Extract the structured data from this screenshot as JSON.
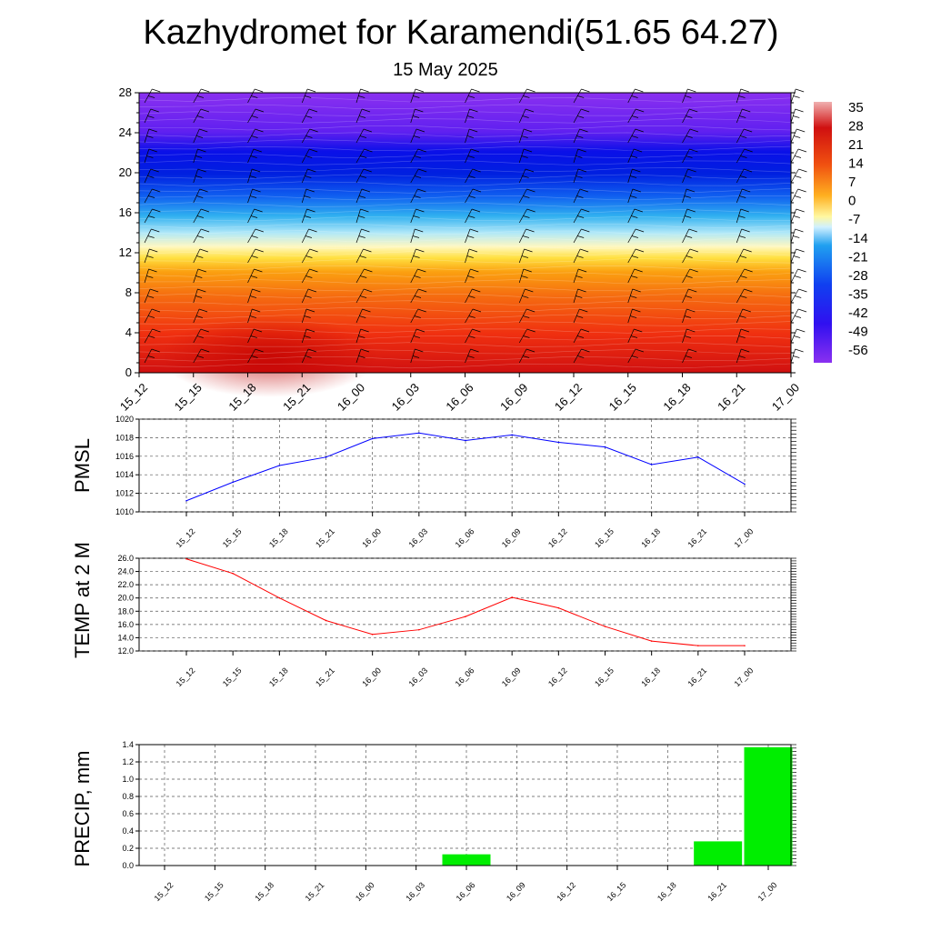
{
  "header": {
    "title": "Kazhydromet for Karamendi(51.65 64.27)",
    "subtitle": "15 May 2025"
  },
  "colors": {
    "pmsl_line": "#0000ff",
    "temp_line": "#ff0000",
    "precip_bar": "#00ee00",
    "grid": "#555555"
  },
  "chart_data": [
    {
      "type": "heatmap",
      "name": "temperature-wind cross-section",
      "x": [
        "15_12",
        "15_15",
        "15_18",
        "15_21",
        "16_00",
        "16_03",
        "16_06",
        "16_09",
        "16_12",
        "16_15",
        "16_18",
        "16_21",
        "17_00"
      ],
      "y_ticks": [
        0,
        4,
        8,
        12,
        16,
        20,
        24,
        28
      ],
      "ylim": [
        0,
        28
      ],
      "colorbar": {
        "labels": [
          "35",
          "28",
          "21",
          "14",
          "7",
          "0",
          "-7",
          "-14",
          "-21",
          "-28",
          "-35",
          "-42",
          "-49",
          "-56"
        ],
        "range": [
          -60,
          38
        ]
      },
      "temperature_profile_by_level": [
        {
          "level": 0,
          "value": 22
        },
        {
          "level": 4,
          "value": 18
        },
        {
          "level": 8,
          "value": 12
        },
        {
          "level": 11,
          "value": 2
        },
        {
          "level": 13,
          "value": -14
        },
        {
          "level": 16,
          "value": -28
        },
        {
          "level": 19,
          "value": -55
        },
        {
          "level": 22,
          "value": -58
        },
        {
          "level": 24,
          "value": -52
        },
        {
          "level": 28,
          "value": -48
        }
      ],
      "wind_barbs": "present"
    },
    {
      "type": "line",
      "ylabel": "PMSL",
      "x": [
        "15_12",
        "15_15",
        "15_18",
        "15_21",
        "16_00",
        "16_03",
        "16_06",
        "16_09",
        "16_12",
        "16_15",
        "16_18",
        "16_21",
        "17_00"
      ],
      "values": [
        1011.2,
        1013.2,
        1015.0,
        1015.9,
        1017.9,
        1018.5,
        1017.7,
        1018.3,
        1017.5,
        1017.0,
        1015.1,
        1015.9,
        1013.0
      ],
      "ylim": [
        1010,
        1020
      ],
      "y_ticks": [
        "1010",
        "1012",
        "1014",
        "1016",
        "1018",
        "1020"
      ],
      "grid": true
    },
    {
      "type": "line",
      "ylabel": "TEMP at 2 M",
      "x": [
        "15_12",
        "15_15",
        "15_18",
        "15_21",
        "16_00",
        "16_03",
        "16_06",
        "16_09",
        "16_12",
        "16_15",
        "16_18",
        "16_21",
        "17_00"
      ],
      "values": [
        25.9,
        23.7,
        20.0,
        16.6,
        14.5,
        15.2,
        17.2,
        20.1,
        18.5,
        15.7,
        13.5,
        12.8,
        12.8
      ],
      "ylim": [
        12,
        26
      ],
      "y_ticks": [
        "12.0",
        "14.0",
        "16.0",
        "18.0",
        "20.0",
        "22.0",
        "24.0",
        "26.0"
      ],
      "grid": true
    },
    {
      "type": "bar",
      "ylabel": "PRECIP, mm",
      "categories": [
        "15_12",
        "15_15",
        "15_18",
        "15_21",
        "16_00",
        "16_03",
        "16_06",
        "16_09",
        "16_12",
        "16_15",
        "16_18",
        "16_21",
        "17_00"
      ],
      "values": [
        0,
        0,
        0,
        0,
        0,
        0,
        0.13,
        0,
        0,
        0,
        0,
        0.28,
        1.37
      ],
      "ylim": [
        0,
        1.4
      ],
      "y_ticks": [
        "0.0",
        "0.2",
        "0.4",
        "0.6",
        "0.8",
        "1.0",
        "1.2",
        "1.4"
      ],
      "grid": true
    }
  ]
}
